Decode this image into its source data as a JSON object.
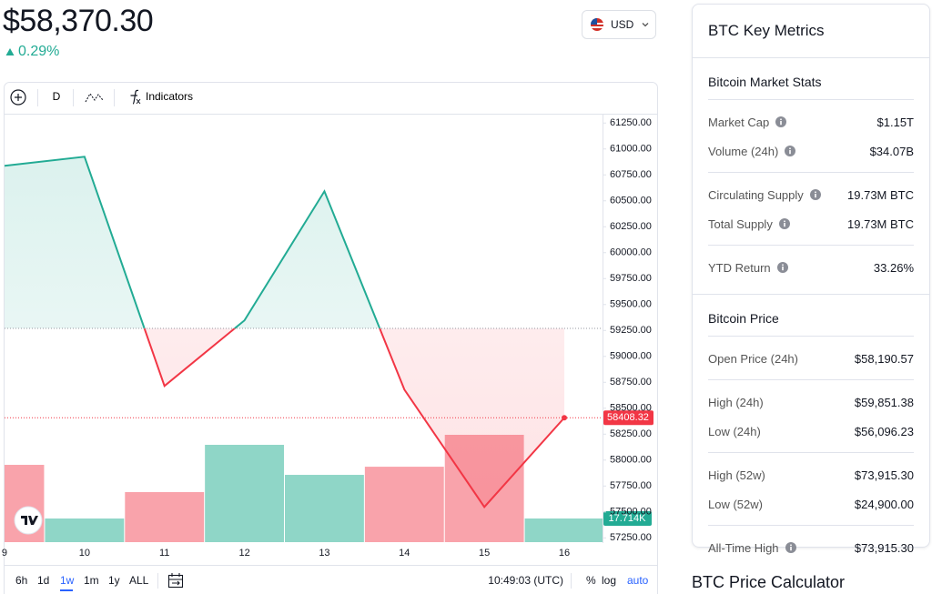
{
  "header": {
    "price": "$58,370.30",
    "change": "0.29%",
    "currency": "USD"
  },
  "toolbar": {
    "interval": "D",
    "indicators": "Indicators"
  },
  "chart_data": {
    "type": "baseline",
    "categories": [
      "9",
      "10",
      "11",
      "12",
      "13",
      "14",
      "15",
      "16"
    ],
    "values": [
      60838,
      60925,
      58715,
      59347,
      60592,
      58680,
      57548,
      58408.32
    ],
    "baseline": 59270,
    "up_color": "#22ab94",
    "down_color": "#f23645",
    "ylim": [
      57200,
      61340
    ],
    "yticks": [
      {
        "value": 57250,
        "label": "57250.00"
      },
      {
        "value": 57500,
        "label": "57500.00"
      },
      {
        "value": 57750,
        "label": "57750.00"
      },
      {
        "value": 58000,
        "label": "58000.00"
      },
      {
        "value": 58250,
        "label": "58250.00"
      },
      {
        "value": 58500,
        "label": "58500.00"
      },
      {
        "value": 58750,
        "label": "58750.00"
      },
      {
        "value": 59000,
        "label": "59000.00"
      },
      {
        "value": 59250,
        "label": "59250.00"
      },
      {
        "value": 59500,
        "label": "59500.00"
      },
      {
        "value": 59750,
        "label": "59750.00"
      },
      {
        "value": 60000,
        "label": "60000.00"
      },
      {
        "value": 60250,
        "label": "60250.00"
      },
      {
        "value": 60500,
        "label": "60500.00"
      },
      {
        "value": 60750,
        "label": "60750.00"
      },
      {
        "value": 61000,
        "label": "61000.00"
      },
      {
        "value": 61250,
        "label": "61250.00"
      }
    ],
    "volume": {
      "values": [
        57900,
        17700,
        37500,
        72900,
        50400,
        56500,
        80400,
        17714
      ],
      "value_labels": [
        null,
        null,
        null,
        null,
        null,
        null,
        null,
        "17.714K"
      ],
      "colors": [
        "#f9a3ab",
        "#8fd6c7",
        "#f9a3ab",
        "#8fd6c7",
        "#8fd6c7",
        "#f9a3ab",
        "#f9a3ab",
        "#8fd6c7"
      ]
    }
  },
  "range_buttons": [
    "6h",
    "1d",
    "1w",
    "1m",
    "1y",
    "ALL"
  ],
  "selected_range_index": 2,
  "time": "10:49:03 (UTC)",
  "scale_buttons": [
    "%",
    "log",
    "auto"
  ],
  "metrics": {
    "title": "BTC Key Metrics",
    "sections": [
      {
        "title": "Bitcoin Market Stats",
        "groups": [
          [
            {
              "label": "Market Cap",
              "value": "$1.15T",
              "info": true
            },
            {
              "label": "Volume (24h)",
              "value": "$34.07B",
              "info": true
            }
          ],
          [
            {
              "label": "Circulating Supply",
              "value": "19.73M BTC",
              "info": true
            },
            {
              "label": "Total Supply",
              "value": "19.73M BTC",
              "info": true
            }
          ],
          [
            {
              "label": "YTD Return",
              "value": "33.26%",
              "info": true
            }
          ]
        ]
      },
      {
        "title": "Bitcoin Price",
        "groups": [
          [
            {
              "label": "Open Price (24h)",
              "value": "$58,190.57",
              "info": false
            }
          ],
          [
            {
              "label": "High (24h)",
              "value": "$59,851.38",
              "info": false
            },
            {
              "label": "Low (24h)",
              "value": "$56,096.23",
              "info": false
            }
          ],
          [
            {
              "label": "High (52w)",
              "value": "$73,915.30",
              "info": false
            },
            {
              "label": "Low (52w)",
              "value": "$24,900.00",
              "info": false
            }
          ],
          [
            {
              "label": "All-Time High",
              "value": "$73,915.30",
              "info": true
            }
          ]
        ]
      }
    ]
  },
  "calculator_title": "BTC Price Calculator"
}
